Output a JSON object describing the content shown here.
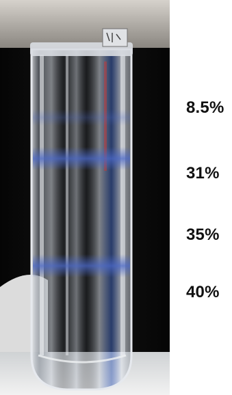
{
  "photo": {
    "subject": "centrifuge-tube-with-gradient-bands",
    "background_color": "#0a0a0a",
    "top_backdrop_color": "#cbc7c0",
    "bottom_backdrop_color": "#ececec",
    "tube_glass_color": "#c9d2de",
    "band_color": "#4a68c9"
  },
  "concentration_labels": [
    {
      "text": "8.5%"
    },
    {
      "text": "31%"
    },
    {
      "text": "35%"
    },
    {
      "text": "40%"
    }
  ]
}
